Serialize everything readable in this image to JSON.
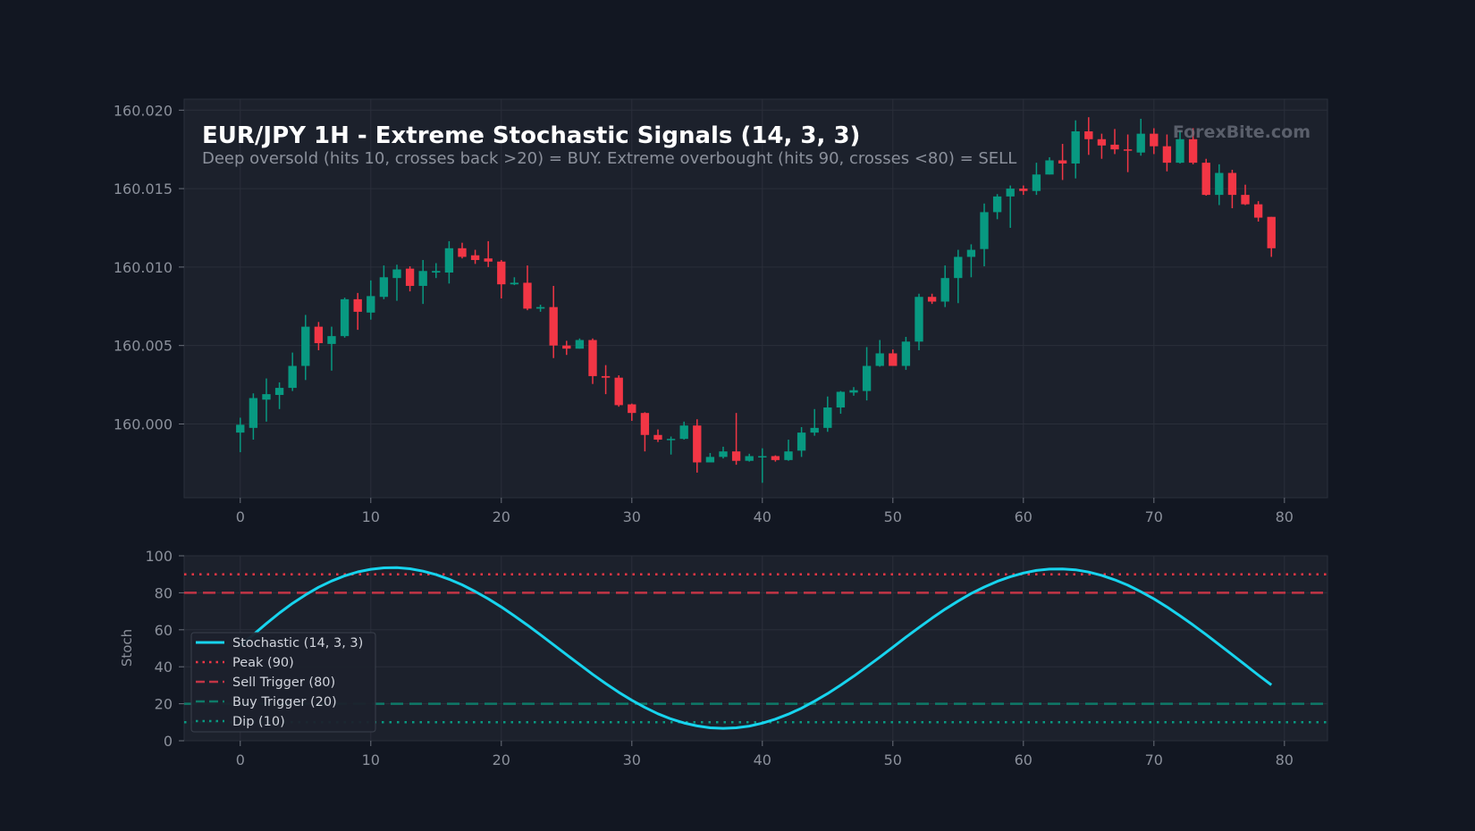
{
  "chart_data": [
    {
      "type": "candlestick",
      "title": "EUR/JPY 1H - Extreme Stochastic Signals (14, 3, 3)",
      "subtitle": "Deep oversold (hits 10, crosses back >20) = BUY. Extreme overbought (hits 90, crosses <80) = SELL",
      "watermark": "ForexBite.com",
      "xlim": [
        -4.3,
        83.3
      ],
      "ylim": [
        159.9953,
        160.0207
      ],
      "x_ticks": [
        0,
        10,
        20,
        30,
        40,
        50,
        60,
        70,
        80
      ],
      "y_ticks": [
        160.0,
        160.005,
        160.01,
        160.015,
        160.02
      ],
      "y_tick_labels": [
        "160.000",
        "160.005",
        "160.010",
        "160.015",
        "160.020"
      ],
      "grid": true,
      "up_color": "#089981",
      "down_color": "#f23645",
      "candles": [
        {
          "x": 0,
          "open": 159.99945,
          "close": 159.99995,
          "high": 160.0004,
          "low": 159.9982
        },
        {
          "x": 1,
          "open": 159.99975,
          "close": 160.00165,
          "high": 160.00195,
          "low": 159.999
        },
        {
          "x": 2,
          "open": 160.00155,
          "close": 160.0019,
          "high": 160.0029,
          "low": 160.00015
        },
        {
          "x": 3,
          "open": 160.00185,
          "close": 160.0023,
          "high": 160.00265,
          "low": 160.00095
        },
        {
          "x": 4,
          "open": 160.0023,
          "close": 160.0037,
          "high": 160.00455,
          "low": 160.0021
        },
        {
          "x": 5,
          "open": 160.0037,
          "close": 160.0062,
          "high": 160.00695,
          "low": 160.0028
        },
        {
          "x": 6,
          "open": 160.0062,
          "close": 160.00515,
          "high": 160.0065,
          "low": 160.0047
        },
        {
          "x": 7,
          "open": 160.0051,
          "close": 160.0056,
          "high": 160.0062,
          "low": 160.0034
        },
        {
          "x": 8,
          "open": 160.0056,
          "close": 160.00795,
          "high": 160.00805,
          "low": 160.0055
        },
        {
          "x": 9,
          "open": 160.00795,
          "close": 160.00715,
          "high": 160.00835,
          "low": 160.006
        },
        {
          "x": 10,
          "open": 160.0071,
          "close": 160.00815,
          "high": 160.00915,
          "low": 160.00665
        },
        {
          "x": 11,
          "open": 160.0081,
          "close": 160.00935,
          "high": 160.0101,
          "low": 160.00795
        },
        {
          "x": 12,
          "open": 160.0093,
          "close": 160.00985,
          "high": 160.01015,
          "low": 160.00785
        },
        {
          "x": 13,
          "open": 160.0099,
          "close": 160.0088,
          "high": 160.01005,
          "low": 160.00845
        },
        {
          "x": 14,
          "open": 160.0088,
          "close": 160.00975,
          "high": 160.01045,
          "low": 160.00765
        },
        {
          "x": 15,
          "open": 160.00965,
          "close": 160.00975,
          "high": 160.01025,
          "low": 160.0093
        },
        {
          "x": 16,
          "open": 160.00965,
          "close": 160.0112,
          "high": 160.01165,
          "low": 160.00895
        },
        {
          "x": 17,
          "open": 160.0112,
          "close": 160.01065,
          "high": 160.01155,
          "low": 160.01055
        },
        {
          "x": 18,
          "open": 160.01075,
          "close": 160.01045,
          "high": 160.0111,
          "low": 160.0102
        },
        {
          "x": 19,
          "open": 160.01055,
          "close": 160.01035,
          "high": 160.01165,
          "low": 160.01
        },
        {
          "x": 20,
          "open": 160.01035,
          "close": 160.0089,
          "high": 160.01045,
          "low": 160.008
        },
        {
          "x": 21,
          "open": 160.0089,
          "close": 160.009,
          "high": 160.00935,
          "low": 160.00885
        },
        {
          "x": 22,
          "open": 160.009,
          "close": 160.00735,
          "high": 160.0101,
          "low": 160.00725
        },
        {
          "x": 23,
          "open": 160.00735,
          "close": 160.00745,
          "high": 160.0076,
          "low": 160.00715
        },
        {
          "x": 24,
          "open": 160.00745,
          "close": 160.005,
          "high": 160.0088,
          "low": 160.0042
        },
        {
          "x": 25,
          "open": 160.005,
          "close": 160.0048,
          "high": 160.0053,
          "low": 160.0044
        },
        {
          "x": 26,
          "open": 160.0048,
          "close": 160.00535,
          "high": 160.00545,
          "low": 160.0048
        },
        {
          "x": 27,
          "open": 160.00535,
          "close": 160.00305,
          "high": 160.00545,
          "low": 160.00255
        },
        {
          "x": 28,
          "open": 160.00305,
          "close": 160.00295,
          "high": 160.00375,
          "low": 160.0019
        },
        {
          "x": 29,
          "open": 160.00295,
          "close": 160.0012,
          "high": 160.0031,
          "low": 160.0011
        },
        {
          "x": 30,
          "open": 160.00125,
          "close": 160.0007,
          "high": 160.0013,
          "low": 160.0002
        },
        {
          "x": 31,
          "open": 160.0007,
          "close": 159.9993,
          "high": 160.00075,
          "low": 159.99825
        },
        {
          "x": 32,
          "open": 159.9993,
          "close": 159.999,
          "high": 159.99965,
          "low": 159.99885
        },
        {
          "x": 33,
          "open": 159.99905,
          "close": 159.99905,
          "high": 159.9992,
          "low": 159.99805
        },
        {
          "x": 34,
          "open": 159.99905,
          "close": 159.9999,
          "high": 160.00015,
          "low": 159.999
        },
        {
          "x": 35,
          "open": 159.9999,
          "close": 159.99755,
          "high": 160.0003,
          "low": 159.9969
        },
        {
          "x": 36,
          "open": 159.99755,
          "close": 159.9979,
          "high": 159.99815,
          "low": 159.9976
        },
        {
          "x": 37,
          "open": 159.9979,
          "close": 159.99825,
          "high": 159.99855,
          "low": 159.9978
        },
        {
          "x": 38,
          "open": 159.99825,
          "close": 159.99765,
          "high": 160.0007,
          "low": 159.9974
        },
        {
          "x": 39,
          "open": 159.99765,
          "close": 159.99795,
          "high": 159.9981,
          "low": 159.9976
        },
        {
          "x": 40,
          "open": 159.99795,
          "close": 159.99795,
          "high": 159.99845,
          "low": 159.99625
        },
        {
          "x": 41,
          "open": 159.99795,
          "close": 159.9977,
          "high": 159.998,
          "low": 159.9976
        },
        {
          "x": 42,
          "open": 159.9977,
          "close": 159.99825,
          "high": 159.999,
          "low": 159.99765
        },
        {
          "x": 43,
          "open": 159.9983,
          "close": 159.99945,
          "high": 159.9998,
          "low": 159.9979
        },
        {
          "x": 44,
          "open": 159.99945,
          "close": 159.99975,
          "high": 160.00095,
          "low": 159.99925
        },
        {
          "x": 45,
          "open": 159.99975,
          "close": 160.00105,
          "high": 160.00175,
          "low": 159.9995
        },
        {
          "x": 46,
          "open": 160.00105,
          "close": 160.00205,
          "high": 160.0021,
          "low": 160.00065
        },
        {
          "x": 47,
          "open": 160.002,
          "close": 160.00215,
          "high": 160.00235,
          "low": 160.0018
        },
        {
          "x": 48,
          "open": 160.0021,
          "close": 160.0037,
          "high": 160.0049,
          "low": 160.0015
        },
        {
          "x": 49,
          "open": 160.0037,
          "close": 160.0045,
          "high": 160.00535,
          "low": 160.00365
        },
        {
          "x": 50,
          "open": 160.0045,
          "close": 160.0037,
          "high": 160.00475,
          "low": 160.0037
        },
        {
          "x": 51,
          "open": 160.0037,
          "close": 160.00525,
          "high": 160.00555,
          "low": 160.00345
        },
        {
          "x": 52,
          "open": 160.00525,
          "close": 160.0081,
          "high": 160.0083,
          "low": 160.0047
        },
        {
          "x": 53,
          "open": 160.0081,
          "close": 160.0078,
          "high": 160.0083,
          "low": 160.00765
        },
        {
          "x": 54,
          "open": 160.0078,
          "close": 160.0093,
          "high": 160.0101,
          "low": 160.00745
        },
        {
          "x": 55,
          "open": 160.0093,
          "close": 160.01065,
          "high": 160.0111,
          "low": 160.0077
        },
        {
          "x": 56,
          "open": 160.01065,
          "close": 160.0111,
          "high": 160.01145,
          "low": 160.00935
        },
        {
          "x": 57,
          "open": 160.01115,
          "close": 160.0135,
          "high": 160.01405,
          "low": 160.01005
        },
        {
          "x": 58,
          "open": 160.0135,
          "close": 160.0145,
          "high": 160.01465,
          "low": 160.01305
        },
        {
          "x": 59,
          "open": 160.0145,
          "close": 160.015,
          "high": 160.0152,
          "low": 160.0125
        },
        {
          "x": 60,
          "open": 160.015,
          "close": 160.01485,
          "high": 160.0152,
          "low": 160.0146
        },
        {
          "x": 61,
          "open": 160.01485,
          "close": 160.0159,
          "high": 160.01665,
          "low": 160.0146
        },
        {
          "x": 62,
          "open": 160.0159,
          "close": 160.0168,
          "high": 160.017,
          "low": 160.0159
        },
        {
          "x": 63,
          "open": 160.0168,
          "close": 160.0166,
          "high": 160.01785,
          "low": 160.01555
        },
        {
          "x": 64,
          "open": 160.0166,
          "close": 160.01865,
          "high": 160.01935,
          "low": 160.01565
        },
        {
          "x": 65,
          "open": 160.01865,
          "close": 160.01815,
          "high": 160.01955,
          "low": 160.01715
        },
        {
          "x": 66,
          "open": 160.01815,
          "close": 160.01775,
          "high": 160.0185,
          "low": 160.0169
        },
        {
          "x": 67,
          "open": 160.0178,
          "close": 160.0175,
          "high": 160.0188,
          "low": 160.0172
        },
        {
          "x": 68,
          "open": 160.0175,
          "close": 160.01745,
          "high": 160.01845,
          "low": 160.01605
        },
        {
          "x": 69,
          "open": 160.0173,
          "close": 160.0185,
          "high": 160.01945,
          "low": 160.0171
        },
        {
          "x": 70,
          "open": 160.0185,
          "close": 160.0177,
          "high": 160.01885,
          "low": 160.0172
        },
        {
          "x": 71,
          "open": 160.0177,
          "close": 160.01665,
          "high": 160.01845,
          "low": 160.0161
        },
        {
          "x": 72,
          "open": 160.01665,
          "close": 160.01815,
          "high": 160.0187,
          "low": 160.0166
        },
        {
          "x": 73,
          "open": 160.01815,
          "close": 160.01665,
          "high": 160.01885,
          "low": 160.01655
        },
        {
          "x": 74,
          "open": 160.01665,
          "close": 160.0146,
          "high": 160.0169,
          "low": 160.01455
        },
        {
          "x": 75,
          "open": 160.0146,
          "close": 160.016,
          "high": 160.01655,
          "low": 160.01395
        },
        {
          "x": 76,
          "open": 160.016,
          "close": 160.0146,
          "high": 160.0162,
          "low": 160.01375
        },
        {
          "x": 77,
          "open": 160.0146,
          "close": 160.014,
          "high": 160.01525,
          "low": 160.01395
        },
        {
          "x": 78,
          "open": 160.014,
          "close": 160.01315,
          "high": 160.0142,
          "low": 160.0129
        },
        {
          "x": 79,
          "open": 160.0132,
          "close": 160.0112,
          "high": 160.0132,
          "low": 160.01065
        }
      ]
    },
    {
      "type": "line",
      "xlim": [
        -4.3,
        83.3
      ],
      "ylim": [
        0,
        100
      ],
      "ylabel": "Stoch",
      "x_ticks": [
        0,
        10,
        20,
        30,
        40,
        50,
        60,
        70,
        80
      ],
      "y_ticks": [
        0,
        20,
        40,
        60,
        80,
        100
      ],
      "grid": true,
      "legend_position": "center-left",
      "series": [
        {
          "name": "Stochastic (14, 3, 3)",
          "color": "#17d4ee",
          "style": "solid",
          "x": [
            0,
            1,
            2,
            3,
            4,
            5,
            6,
            7,
            8,
            9,
            10,
            11,
            12,
            13,
            14,
            15,
            16,
            17,
            18,
            19,
            20,
            21,
            22,
            23,
            24,
            25,
            26,
            27,
            28,
            29,
            30,
            31,
            32,
            33,
            34,
            35,
            36,
            37,
            38,
            39,
            40,
            41,
            42,
            43,
            44,
            45,
            46,
            47,
            48,
            49,
            50,
            51,
            52,
            53,
            54,
            55,
            56,
            57,
            58,
            59,
            60,
            61,
            62,
            63,
            64,
            65,
            66,
            67,
            68,
            69,
            70,
            71,
            72,
            73,
            74,
            75,
            76,
            77,
            78,
            79
          ],
          "values": [
            51.2,
            57.4,
            63.4,
            69.1,
            74.3,
            78.9,
            83.0,
            86.4,
            89.2,
            91.3,
            92.7,
            93.5,
            93.6,
            93.0,
            91.7,
            89.8,
            87.3,
            84.3,
            80.7,
            76.7,
            72.3,
            67.5,
            62.5,
            57.3,
            51.9,
            46.5,
            41.2,
            35.9,
            30.9,
            26.2,
            21.9,
            18.0,
            14.6,
            11.8,
            9.6,
            8.0,
            7.0,
            6.7,
            7.0,
            7.9,
            9.5,
            11.7,
            14.4,
            17.6,
            21.4,
            25.5,
            30.1,
            34.9,
            40.0,
            45.2,
            50.6,
            56.0,
            61.2,
            66.3,
            71.1,
            75.5,
            79.6,
            83.1,
            86.2,
            88.7,
            90.7,
            92.1,
            92.8,
            92.9,
            92.4,
            91.2,
            89.4,
            87.0,
            84.1,
            80.6,
            76.7,
            72.3,
            67.6,
            62.6,
            57.4,
            52.0,
            46.5,
            41.0,
            35.5,
            30.2
          ]
        },
        {
          "name": "Peak (90)",
          "color": "#f23645",
          "style": "dotted",
          "value": 90
        },
        {
          "name": "Sell Trigger (80)",
          "color": "#c23545",
          "style": "dashed",
          "value": 80
        },
        {
          "name": "Buy Trigger (20)",
          "color": "#0e7a68",
          "style": "dashed",
          "value": 20
        },
        {
          "name": "Dip (10)",
          "color": "#089981",
          "style": "dotted",
          "value": 10
        }
      ]
    }
  ]
}
